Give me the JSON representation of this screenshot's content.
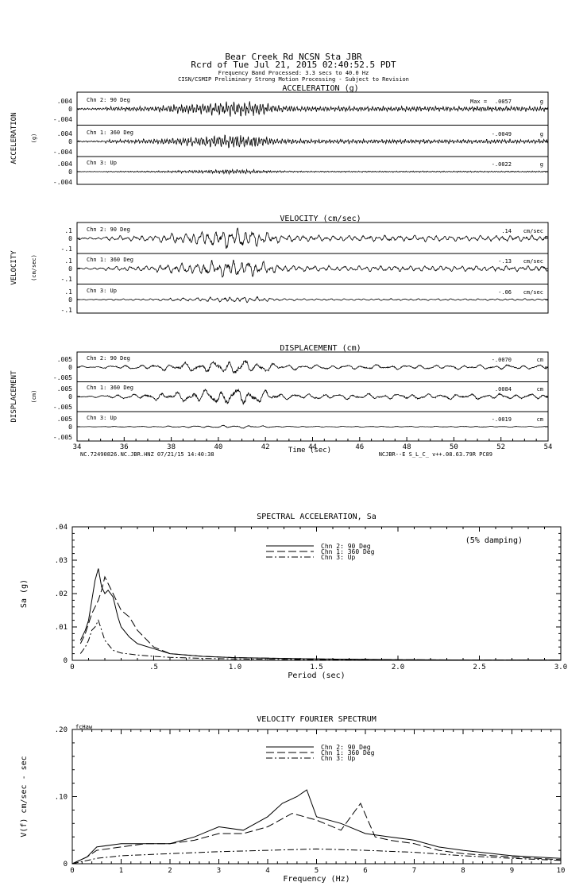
{
  "header": {
    "line1": "Bear Creek Rd     NCSN Sta JBR",
    "line2": "Rcrd of Tue Jul 21, 2015 02:40:52.5 PDT",
    "line3": "Frequency Band Processed: 3.3 secs to 40.0 Hz",
    "line4": "CISN/CSMIP Preliminary Strong Motion Processing - Subject to Revision"
  },
  "footer": {
    "left": "NC.72490826.NC.JBR.HNZ 07/21/15 14:40:38",
    "right": "NCJBR--E  S_L_C_  v++.08.63.79R PC89"
  },
  "chart_data": [
    {
      "type": "line",
      "title": "ACCELERATION (g)",
      "ylabel": "ACCELERATION",
      "yunit": "(g)",
      "xlim": [
        34,
        54
      ],
      "xlabel": "Time (sec)",
      "xticks": [
        "34",
        "36",
        "38",
        "40",
        "42",
        "44",
        "46",
        "48",
        "50",
        "52",
        "54"
      ],
      "channels": [
        {
          "name": "Chn 2: 90 Deg",
          "ytick": ".004",
          "ytick_neg": "-.004",
          "peak": ".0057",
          "peak_prefix": "Max =",
          "unit": "g",
          "amp": 0.0057
        },
        {
          "name": "Chn 1: 360 Deg",
          "ytick": ".004",
          "ytick_neg": "-.004",
          "peak": "-.0049",
          "unit": "g",
          "amp": 0.0049
        },
        {
          "name": "Chn 3: Up",
          "ytick": ".004",
          "ytick_neg": "-.004",
          "peak": "-.0022",
          "unit": "g",
          "amp": 0.0022
        }
      ],
      "ylim": [
        -0.005,
        0.005
      ]
    },
    {
      "type": "line",
      "title": "VELOCITY (cm/sec)",
      "ylabel": "VELOCITY",
      "yunit": "(cm/sec)",
      "xlim": [
        34,
        54
      ],
      "channels": [
        {
          "name": "Chn 2: 90 Deg",
          "ytick": ".1",
          "ytick_neg": "-.1",
          "peak": ".14",
          "unit": "cm/sec",
          "amp": 0.14
        },
        {
          "name": "Chn 1: 360 Deg",
          "ytick": ".1",
          "ytick_neg": "-.1",
          "peak": "-.13",
          "unit": "cm/sec",
          "amp": 0.13
        },
        {
          "name": "Chn 3: Up",
          "ytick": ".1",
          "ytick_neg": "-.1",
          "peak": "-.06",
          "unit": "cm/sec",
          "amp": 0.06
        }
      ],
      "ylim": [
        -0.15,
        0.15
      ]
    },
    {
      "type": "line",
      "title": "DISPLACEMENT (cm)",
      "ylabel": "DISPLACEMENT",
      "yunit": "(cm)",
      "xlim": [
        34,
        54
      ],
      "channels": [
        {
          "name": "Chn 2: 90 Deg",
          "ytick": ".005",
          "ytick_neg": "-.005",
          "peak": "-.0070",
          "unit": "cm",
          "amp": 0.007
        },
        {
          "name": "Chn 1: 360 Deg",
          "ytick": ".005",
          "ytick_neg": "-.005",
          "peak": ".0084",
          "unit": "cm",
          "amp": 0.0084
        },
        {
          "name": "Chn 3: Up",
          "ytick": ".005",
          "ytick_neg": "-.005",
          "peak": "-.0019",
          "unit": "cm",
          "amp": 0.0019
        }
      ],
      "ylim": [
        -0.009,
        0.009
      ]
    },
    {
      "type": "line",
      "title": "SPECTRAL ACCELERATION, Sa",
      "ylabel": "Sa (g)",
      "xlabel": "Period (sec)",
      "note": "(5% damping)",
      "xlim": [
        0,
        3.0
      ],
      "ylim": [
        0,
        0.04
      ],
      "xticks": [
        "0",
        ".5",
        "1.0",
        "1.5",
        "2.0",
        "2.5",
        "3.0"
      ],
      "yticks": [
        "0",
        ".01",
        ".02",
        ".03",
        ".04"
      ],
      "legend": "top-center",
      "series": [
        {
          "name": "Chn 2: 90 Deg",
          "style": "solid",
          "x": [
            0.05,
            0.08,
            0.1,
            0.12,
            0.14,
            0.16,
            0.18,
            0.2,
            0.22,
            0.25,
            0.28,
            0.3,
            0.35,
            0.4,
            0.5,
            0.6,
            0.8,
            1.0,
            1.5,
            2.0,
            2.5,
            3.0
          ],
          "y": [
            0.006,
            0.009,
            0.012,
            0.018,
            0.024,
            0.0275,
            0.022,
            0.02,
            0.021,
            0.019,
            0.013,
            0.01,
            0.007,
            0.005,
            0.0035,
            0.002,
            0.0012,
            0.0008,
            0.0004,
            0.0002,
            0.0001,
            0.0001
          ]
        },
        {
          "name": "Chn 1: 360 Deg",
          "style": "dash",
          "x": [
            0.05,
            0.08,
            0.1,
            0.12,
            0.14,
            0.16,
            0.18,
            0.2,
            0.22,
            0.25,
            0.28,
            0.3,
            0.35,
            0.4,
            0.5,
            0.6,
            0.8,
            1.0,
            1.5,
            2.0,
            2.5,
            3.0
          ],
          "y": [
            0.005,
            0.008,
            0.011,
            0.014,
            0.016,
            0.018,
            0.021,
            0.025,
            0.023,
            0.02,
            0.017,
            0.015,
            0.013,
            0.009,
            0.004,
            0.002,
            0.0012,
            0.0008,
            0.0004,
            0.0002,
            0.0001,
            0.0001
          ]
        },
        {
          "name": "Chn 3: Up",
          "style": "dashdot",
          "x": [
            0.05,
            0.08,
            0.1,
            0.12,
            0.14,
            0.16,
            0.18,
            0.2,
            0.25,
            0.3,
            0.4,
            0.5,
            0.6,
            0.8,
            1.0,
            1.5,
            2.0,
            2.5,
            3.0
          ],
          "y": [
            0.002,
            0.004,
            0.006,
            0.009,
            0.01,
            0.012,
            0.009,
            0.006,
            0.003,
            0.0022,
            0.0016,
            0.0012,
            0.0009,
            0.0006,
            0.0004,
            0.0002,
            0.0001,
            0.0001,
            0.0001
          ]
        }
      ]
    },
    {
      "type": "line",
      "title": "VELOCITY FOURIER SPECTRUM",
      "ylabel": "V(f)   cm/sec - sec",
      "xlabel": "Frequency (Hz)",
      "corner": "fcHaw",
      "xlim": [
        0,
        10
      ],
      "ylim": [
        0,
        0.2
      ],
      "xticks": [
        "0",
        "1",
        "2",
        "3",
        "4",
        "5",
        "6",
        "7",
        "8",
        "9",
        "10"
      ],
      "yticks": [
        "0",
        ".10",
        ".20"
      ],
      "legend": "top-center",
      "series": [
        {
          "name": "Chn 2: 90 Deg",
          "style": "solid",
          "x": [
            0,
            0.3,
            0.5,
            1,
            1.5,
            2,
            2.5,
            3,
            3.5,
            4,
            4.3,
            4.6,
            4.8,
            5,
            5.5,
            6,
            6.5,
            7,
            7.5,
            8,
            9,
            10
          ],
          "y": [
            0,
            0.01,
            0.025,
            0.03,
            0.03,
            0.03,
            0.04,
            0.055,
            0.05,
            0.07,
            0.09,
            0.1,
            0.11,
            0.07,
            0.06,
            0.045,
            0.04,
            0.035,
            0.025,
            0.02,
            0.012,
            0.008
          ]
        },
        {
          "name": "Chn 1: 360 Deg",
          "style": "dash",
          "x": [
            0,
            0.3,
            0.5,
            1,
            1.5,
            2,
            2.5,
            3,
            3.5,
            4,
            4.5,
            5,
            5.5,
            5.9,
            6.2,
            6.5,
            7,
            7.5,
            8,
            9,
            10
          ],
          "y": [
            0,
            0.01,
            0.02,
            0.025,
            0.03,
            0.03,
            0.035,
            0.045,
            0.045,
            0.055,
            0.075,
            0.065,
            0.05,
            0.09,
            0.04,
            0.035,
            0.03,
            0.02,
            0.015,
            0.01,
            0.006
          ]
        },
        {
          "name": "Chn 3: Up",
          "style": "dashdot",
          "x": [
            0,
            0.5,
            1,
            2,
            3,
            4,
            5,
            6,
            7,
            8,
            9,
            10
          ],
          "y": [
            0,
            0.008,
            0.012,
            0.015,
            0.018,
            0.02,
            0.022,
            0.02,
            0.017,
            0.012,
            0.008,
            0.005
          ]
        }
      ]
    }
  ]
}
